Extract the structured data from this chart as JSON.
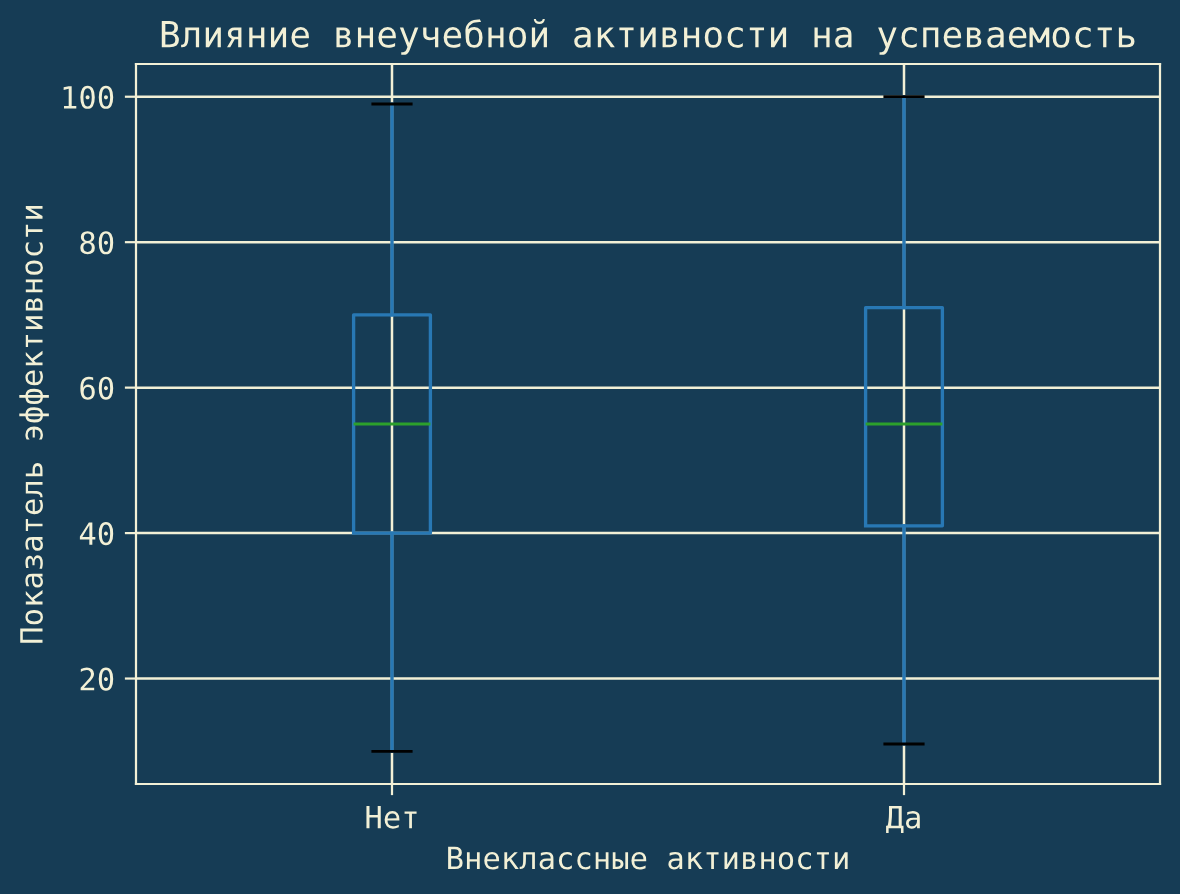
{
  "chart_data": {
    "type": "box",
    "title": "Влияние внеучебной активности на успеваемость",
    "xlabel": "Внеклассные активности",
    "ylabel": "Показатель эффективности",
    "categories": [
      "Нет",
      "Да"
    ],
    "series": [
      {
        "color": "#2878b4",
        "boxes": [
          {
            "low": 10,
            "q1": 40,
            "median": 55,
            "q3": 70,
            "high": 99
          },
          {
            "low": 11,
            "q1": 41,
            "median": 55,
            "q3": 71,
            "high": 100
          }
        ]
      }
    ],
    "ylim": [
      5.5,
      104.5
    ],
    "yticks": [
      20,
      40,
      60,
      80,
      100
    ],
    "grid": true
  }
}
